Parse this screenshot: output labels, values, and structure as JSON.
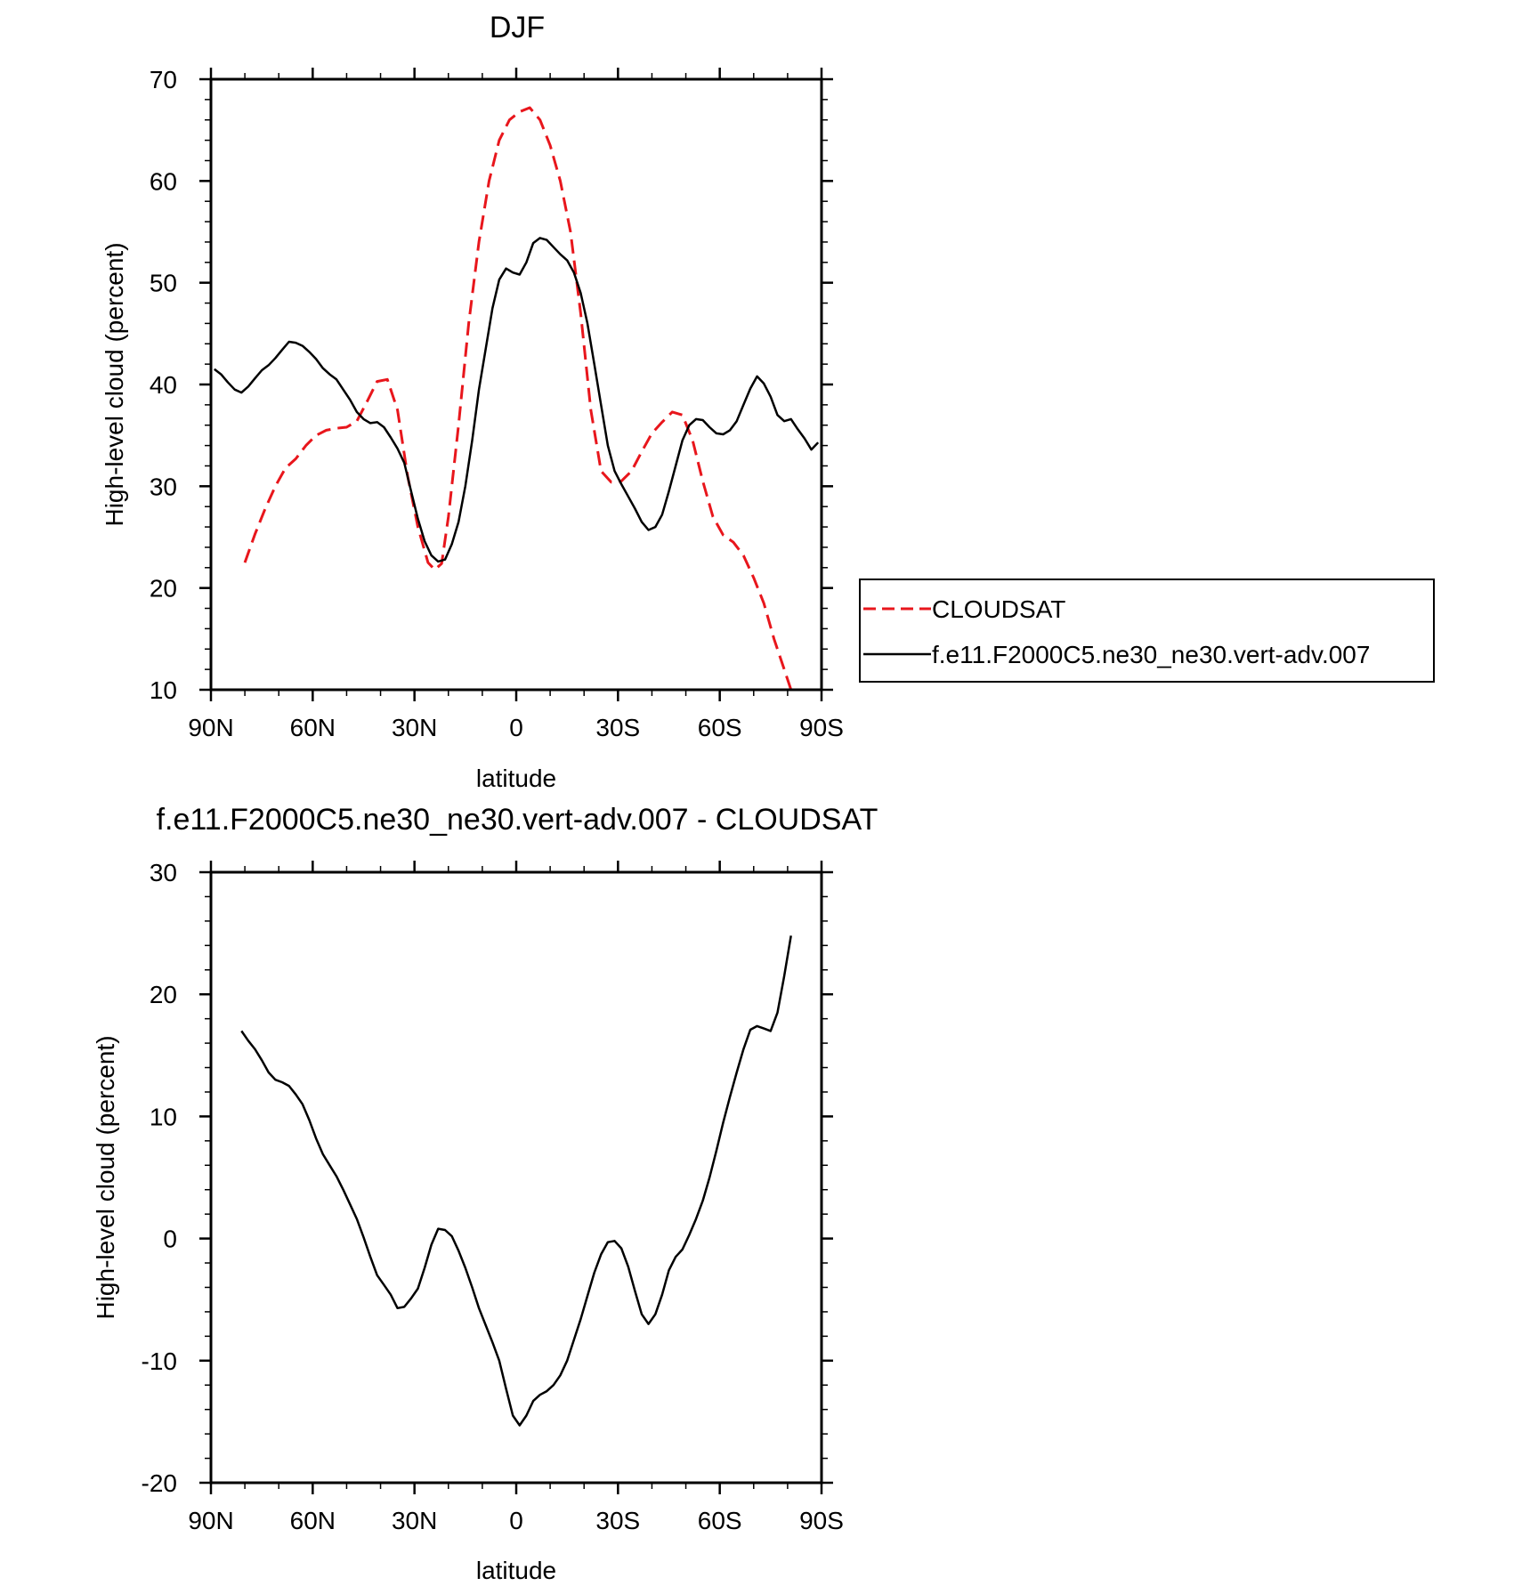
{
  "charts": [
    {
      "title": "DJF",
      "xlabel": "latitude",
      "ylabel": "High-level cloud (percent)"
    },
    {
      "title": "f.e11.F2000C5.ne30_ne30.vert-adv.007 - CLOUDSAT",
      "xlabel": "latitude",
      "ylabel": "High-level cloud (percent)"
    }
  ],
  "legend": {
    "entries": [
      {
        "label": "CLOUDSAT"
      },
      {
        "label": "f.e11.F2000C5.ne30_ne30.vert-adv.007"
      }
    ]
  },
  "chart_data": [
    {
      "type": "line",
      "title": "DJF",
      "xlabel": "latitude",
      "ylabel": "High-level cloud (percent)",
      "xlim": [
        -90,
        90
      ],
      "ylim": [
        10,
        70
      ],
      "x_ticks": [
        -90,
        -60,
        -30,
        0,
        30,
        60,
        90
      ],
      "x_tick_labels": [
        "90N",
        "60N",
        "30N",
        "0",
        "30S",
        "60S",
        "90S"
      ],
      "y_ticks": [
        10,
        20,
        30,
        40,
        50,
        60,
        70
      ],
      "y_tick_labels": [
        "10",
        "20",
        "30",
        "40",
        "50",
        "60",
        "70"
      ],
      "grid": false,
      "legend_position": "outside-right",
      "series": [
        {
          "name": "CLOUDSAT",
          "color": "#e8161c",
          "dash": "dashed",
          "x": [
            -80,
            -77,
            -74,
            -71,
            -68,
            -65,
            -62,
            -59,
            -56,
            -53,
            -50,
            -47,
            -44,
            -41,
            -38,
            -35,
            -32,
            -29,
            -26,
            -24,
            -22,
            -20,
            -17,
            -14,
            -11,
            -8,
            -5,
            -2,
            1,
            4,
            7,
            10,
            13,
            16,
            19,
            22,
            25,
            28,
            31,
            34,
            37,
            40,
            43,
            46,
            49,
            52,
            55,
            58,
            61,
            64,
            67,
            70,
            73,
            76,
            79,
            81
          ],
          "y": [
            22.5,
            25.3,
            27.8,
            30.0,
            31.8,
            32.7,
            34.0,
            35.0,
            35.5,
            35.7,
            35.8,
            36.4,
            38.3,
            40.3,
            40.5,
            37.5,
            31.0,
            26.0,
            22.5,
            21.8,
            22.4,
            27.0,
            36.0,
            46.0,
            54.0,
            60.0,
            64.0,
            66.0,
            66.8,
            67.2,
            66.0,
            63.5,
            60.0,
            55.0,
            47.0,
            37.5,
            31.5,
            30.4,
            30.5,
            31.5,
            33.4,
            35.2,
            36.3,
            37.3,
            37.0,
            34.5,
            30.5,
            27.0,
            25.2,
            24.5,
            23.2,
            21.0,
            18.5,
            15.0,
            12.0,
            10.0
          ]
        },
        {
          "name": "f.e11.F2000C5.ne30_ne30.vert-adv.007",
          "color": "#000000",
          "dash": "solid",
          "x": [
            -89,
            -87,
            -85,
            -83,
            -81,
            -79,
            -77,
            -75,
            -73,
            -71,
            -69,
            -67,
            -65,
            -63,
            -61,
            -59,
            -57,
            -55,
            -53,
            -51,
            -49,
            -47,
            -45,
            -43,
            -41,
            -39,
            -37,
            -35,
            -33,
            -31,
            -29,
            -27,
            -25,
            -23,
            -21,
            -19,
            -17,
            -15,
            -13,
            -11,
            -9,
            -7,
            -5,
            -3,
            -1,
            1,
            3,
            5,
            7,
            9,
            11,
            13,
            15,
            17,
            19,
            21,
            23,
            25,
            27,
            29,
            31,
            33,
            35,
            37,
            39,
            41,
            43,
            45,
            47,
            49,
            51,
            53,
            55,
            57,
            59,
            61,
            63,
            65,
            67,
            69,
            71,
            73,
            75,
            77,
            79,
            81,
            83,
            85,
            87,
            89
          ],
          "y": [
            41.5,
            41.0,
            40.2,
            39.5,
            39.2,
            39.8,
            40.6,
            41.4,
            41.9,
            42.6,
            43.4,
            44.2,
            44.1,
            43.8,
            43.2,
            42.5,
            41.6,
            41.0,
            40.5,
            39.5,
            38.5,
            37.3,
            36.6,
            36.2,
            36.3,
            35.8,
            34.8,
            33.7,
            32.3,
            29.5,
            26.8,
            24.6,
            23.2,
            22.6,
            22.8,
            24.3,
            26.5,
            30.0,
            34.5,
            39.5,
            43.5,
            47.5,
            50.3,
            51.4,
            51.0,
            50.8,
            52.0,
            53.9,
            54.4,
            54.2,
            53.5,
            52.8,
            52.2,
            51.0,
            49.0,
            46.0,
            42.0,
            38.0,
            34.0,
            31.5,
            30.2,
            29.0,
            27.8,
            26.5,
            25.7,
            26.0,
            27.2,
            29.5,
            32.0,
            34.5,
            36.0,
            36.6,
            36.5,
            35.8,
            35.2,
            35.1,
            35.5,
            36.4,
            38.0,
            39.6,
            40.8,
            40.1,
            38.8,
            37.0,
            36.4,
            36.6,
            35.6,
            34.7,
            33.6,
            34.3
          ]
        }
      ]
    },
    {
      "type": "line",
      "title": "f.e11.F2000C5.ne30_ne30.vert-adv.007 - CLOUDSAT",
      "xlabel": "latitude",
      "ylabel": "High-level cloud (percent)",
      "xlim": [
        -90,
        90
      ],
      "ylim": [
        -20,
        30
      ],
      "x_ticks": [
        -90,
        -60,
        -30,
        0,
        30,
        60,
        90
      ],
      "x_tick_labels": [
        "90N",
        "60N",
        "30N",
        "0",
        "30S",
        "60S",
        "90S"
      ],
      "y_ticks": [
        -20,
        -10,
        0,
        10,
        20,
        30
      ],
      "y_tick_labels": [
        "-20",
        "-10",
        "0",
        "10",
        "20",
        "30"
      ],
      "grid": false,
      "series": [
        {
          "color": "#000000",
          "dash": "solid",
          "x": [
            -81,
            -79,
            -77,
            -75,
            -73,
            -71,
            -69,
            -67,
            -65,
            -63,
            -61,
            -59,
            -57,
            -55,
            -53,
            -51,
            -49,
            -47,
            -45,
            -43,
            -41,
            -39,
            -37,
            -35,
            -33,
            -31,
            -29,
            -27,
            -25,
            -23,
            -21,
            -19,
            -17,
            -15,
            -13,
            -11,
            -9,
            -7,
            -5,
            -3,
            -1,
            1,
            3,
            5,
            7,
            9,
            11,
            13,
            15,
            17,
            19,
            21,
            23,
            25,
            27,
            29,
            31,
            33,
            35,
            37,
            39,
            41,
            43,
            45,
            47,
            49,
            51,
            53,
            55,
            57,
            59,
            61,
            63,
            65,
            67,
            69,
            71,
            73,
            75,
            77,
            79,
            81
          ],
          "y": [
            17.0,
            16.2,
            15.5,
            14.6,
            13.6,
            13.0,
            12.8,
            12.5,
            11.8,
            11.0,
            9.7,
            8.2,
            6.9,
            6.0,
            5.1,
            4.0,
            2.8,
            1.6,
            0.1,
            -1.5,
            -3.0,
            -3.8,
            -4.6,
            -5.7,
            -5.6,
            -4.9,
            -4.1,
            -2.4,
            -0.5,
            0.8,
            0.7,
            0.2,
            -1.0,
            -2.4,
            -4.0,
            -5.7,
            -7.1,
            -8.5,
            -10.0,
            -12.3,
            -14.5,
            -15.3,
            -14.5,
            -13.3,
            -12.8,
            -12.5,
            -12.0,
            -11.2,
            -10.0,
            -8.3,
            -6.6,
            -4.7,
            -2.8,
            -1.3,
            -0.3,
            -0.2,
            -0.8,
            -2.3,
            -4.3,
            -6.2,
            -7.0,
            -6.2,
            -4.6,
            -2.6,
            -1.5,
            -0.9,
            0.3,
            1.6,
            3.1,
            5.0,
            7.2,
            9.5,
            11.6,
            13.6,
            15.5,
            17.1,
            17.4,
            17.2,
            17.0,
            18.5,
            21.5,
            24.8
          ]
        }
      ]
    }
  ]
}
